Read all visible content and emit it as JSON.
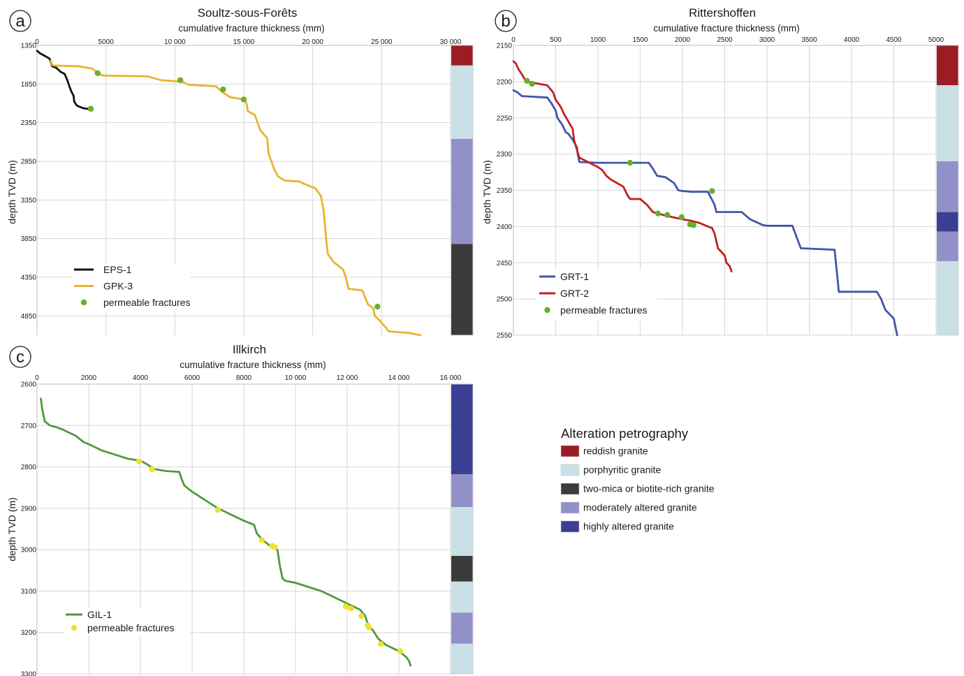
{
  "chart_data": [
    {
      "id": "a",
      "type": "line",
      "badge": "a",
      "title": "Soultz-sous-Forêts",
      "xlabel": "cumulative fracture thickness (mm)",
      "ylabel": "depth TVD (m)",
      "xlim": [
        0,
        30000
      ],
      "ylim": [
        1350,
        5100
      ],
      "y_inverted": true,
      "xticks": [
        0,
        5000,
        10000,
        15000,
        20000,
        25000,
        30000
      ],
      "xtick_labels": [
        "0",
        "5000",
        "10 000",
        "15 000",
        "20 000",
        "25 000",
        "30 000"
      ],
      "yticks": [
        1350,
        1850,
        2350,
        2850,
        3350,
        3850,
        4350,
        4850
      ],
      "ytick_labels": [
        "1350",
        "1850",
        "2350",
        "2850",
        "3350",
        "3850",
        "4350",
        "4850"
      ],
      "grid": true,
      "legend_position": "bottom-left",
      "series": [
        {
          "name": "EPS-1",
          "color": "#111111",
          "x": [
            0,
            200,
            500,
            900,
            1000,
            1100,
            1400,
            1700,
            2000,
            2200,
            2350,
            2500,
            2650,
            2700,
            2900,
            3300,
            3600,
            3900,
            4000
          ],
          "y": [
            1420,
            1450,
            1480,
            1520,
            1560,
            1620,
            1640,
            1690,
            1720,
            1800,
            1880,
            1950,
            2000,
            2080,
            2130,
            2160,
            2170,
            2170,
            2190
          ]
        },
        {
          "name": "GPK-3",
          "color": "#E8B430",
          "x": [
            1000,
            1100,
            1200,
            3000,
            4000,
            4300,
            4500,
            4800,
            8000,
            9000,
            10500,
            11000,
            13000,
            13400,
            14000,
            15000,
            15200,
            15300,
            15800,
            16000,
            16200,
            16700,
            16800,
            17000,
            17200,
            17500,
            18000,
            19000,
            19500,
            20200,
            20600,
            20800,
            20900,
            21000,
            21100,
            21500,
            22200,
            22400,
            22600,
            23600,
            24000,
            24400,
            24500,
            24800,
            25300,
            25500,
            27000,
            27800
          ],
          "y": [
            1550,
            1600,
            1610,
            1620,
            1650,
            1690,
            1720,
            1740,
            1750,
            1800,
            1820,
            1860,
            1880,
            1950,
            2020,
            2050,
            2100,
            2200,
            2250,
            2350,
            2450,
            2550,
            2750,
            2850,
            2950,
            3050,
            3100,
            3110,
            3150,
            3200,
            3300,
            3500,
            3700,
            3900,
            4050,
            4150,
            4250,
            4350,
            4500,
            4520,
            4700,
            4750,
            4850,
            4900,
            5000,
            5050,
            5070,
            5100
          ]
        }
      ],
      "permeable_fractures": [
        {
          "series": "EPS-1",
          "color": "#6AAE2E",
          "x": [
            3900
          ],
          "y": [
            2170
          ]
        },
        {
          "series": "GPK-3",
          "color": "#6AAE2E",
          "x": [
            4400,
            10400,
            13500,
            15000,
            24700
          ],
          "y": [
            1710,
            1800,
            1920,
            2050,
            4730
          ]
        }
      ],
      "legend": [
        {
          "label": "EPS-1",
          "kind": "line",
          "color": "#111111"
        },
        {
          "label": "GPK-3",
          "kind": "line",
          "color": "#E8B430"
        },
        {
          "label": "permeable fractures",
          "kind": "dot",
          "color": "#6AAE2E"
        }
      ],
      "alteration_column": [
        {
          "class": "reddish granite",
          "color": "#9B1C24",
          "from": 1350,
          "to": 1610
        },
        {
          "class": "porphyritic granite",
          "color": "#C8E0E6",
          "from": 1610,
          "to": 2560
        },
        {
          "class": "moderately altered granite",
          "color": "#9290C8",
          "from": 2560,
          "to": 3920
        },
        {
          "class": "two-mica or biotite-rich granite",
          "color": "#3B3B3B",
          "from": 3920,
          "to": 5100
        }
      ]
    },
    {
      "id": "b",
      "type": "line",
      "badge": "b",
      "title": "Rittershoffen",
      "xlabel": "cumulative fracture thickness (mm)",
      "ylabel": "depth TVD (m)",
      "xlim": [
        0,
        5000
      ],
      "ylim": [
        2150,
        2550
      ],
      "y_inverted": true,
      "xticks": [
        0,
        500,
        1000,
        1500,
        2000,
        2500,
        3000,
        3500,
        4000,
        4500,
        5000
      ],
      "xtick_labels": [
        "0",
        "500",
        "1000",
        "1500",
        "2000",
        "2500",
        "3000",
        "3500",
        "4000",
        "4500",
        "5000"
      ],
      "yticks": [
        2150,
        2200,
        2250,
        2300,
        2350,
        2400,
        2450,
        2500,
        2550
      ],
      "ytick_labels": [
        "2150",
        "2200",
        "2250",
        "2300",
        "2350",
        "2400",
        "2450",
        "2500",
        "2550"
      ],
      "grid": true,
      "legend_position": "bottom-left",
      "series": [
        {
          "name": "GRT-1",
          "color": "#3F56A8",
          "x": [
            0,
            50,
            100,
            400,
            450,
            500,
            520,
            580,
            620,
            650,
            700,
            750,
            760,
            780,
            1000,
            1250,
            1600,
            1650,
            1700,
            1800,
            1900,
            1950,
            2000,
            2100,
            2300,
            2380,
            2400,
            2700,
            2800,
            2950,
            3000,
            3300,
            3400,
            3800,
            3850,
            4300,
            4350,
            4400,
            4500,
            4540
          ],
          "y": [
            2212,
            2215,
            2220,
            2222,
            2230,
            2240,
            2250,
            2260,
            2270,
            2272,
            2280,
            2290,
            2300,
            2311,
            2312,
            2312,
            2312,
            2320,
            2330,
            2332,
            2340,
            2350,
            2351,
            2352,
            2352,
            2370,
            2380,
            2380,
            2390,
            2398,
            2399,
            2399,
            2430,
            2432,
            2490,
            2490,
            2500,
            2515,
            2527,
            2550
          ]
        },
        {
          "name": "GRT-2",
          "color": "#C02020",
          "x": [
            0,
            30,
            60,
            100,
            130,
            160,
            250,
            400,
            470,
            500,
            560,
            600,
            650,
            700,
            720,
            780,
            900,
            1000,
            1050,
            1100,
            1150,
            1300,
            1350,
            1380,
            1500,
            1580,
            1650,
            1800,
            2000,
            2100,
            2200,
            2300,
            2350,
            2380,
            2420,
            2500,
            2520,
            2560,
            2580
          ],
          "y": [
            2172,
            2175,
            2183,
            2190,
            2196,
            2200,
            2202,
            2205,
            2215,
            2225,
            2235,
            2245,
            2255,
            2265,
            2282,
            2305,
            2312,
            2318,
            2322,
            2330,
            2335,
            2345,
            2357,
            2362,
            2362,
            2370,
            2380,
            2385,
            2390,
            2392,
            2395,
            2400,
            2402,
            2410,
            2430,
            2440,
            2450,
            2455,
            2462
          ]
        }
      ],
      "permeable_fractures": [
        {
          "series": "GRT-1",
          "color": "#6AAE2E",
          "x": [
            1380,
            2350
          ],
          "y": [
            2312,
            2351
          ]
        },
        {
          "series": "GRT-2",
          "color": "#6AAE2E",
          "x": [
            160,
            220,
            1710,
            1820,
            1990,
            2090,
            2130
          ],
          "y": [
            2199,
            2203,
            2382,
            2384,
            2387,
            2397,
            2398
          ]
        }
      ],
      "legend": [
        {
          "label": "GRT-1",
          "kind": "line",
          "color": "#3F56A8"
        },
        {
          "label": "GRT-2",
          "kind": "line",
          "color": "#C02020"
        },
        {
          "label": "permeable fractures",
          "kind": "dot",
          "color": "#6AAE2E"
        }
      ],
      "alteration_column": [
        {
          "class": "reddish granite",
          "color": "#9B1C24",
          "from": 2150,
          "to": 2205
        },
        {
          "class": "porphyritic granite",
          "color": "#C8E0E6",
          "from": 2205,
          "to": 2310
        },
        {
          "class": "moderately altered granite",
          "color": "#9290C8",
          "from": 2310,
          "to": 2380
        },
        {
          "class": "highly altered granite",
          "color": "#3A3F93",
          "from": 2380,
          "to": 2407
        },
        {
          "class": "moderately altered granite",
          "color": "#9290C8",
          "from": 2407,
          "to": 2448
        },
        {
          "class": "porphyritic granite",
          "color": "#C8E0E6",
          "from": 2448,
          "to": 2550
        }
      ]
    },
    {
      "id": "c",
      "type": "line",
      "badge": "c",
      "title": "Illkirch",
      "xlabel": "cumulative fracture thickness (mm)",
      "ylabel": "depth TVD (m)",
      "xlim": [
        0,
        16000
      ],
      "ylim": [
        2600,
        3300
      ],
      "y_inverted": true,
      "xticks": [
        0,
        2000,
        4000,
        6000,
        8000,
        10000,
        12000,
        14000,
        16000
      ],
      "xtick_labels": [
        "0",
        "2000",
        "4000",
        "6000",
        "8000",
        "10 000",
        "12 000",
        "14 000",
        "16 000"
      ],
      "yticks": [
        2600,
        2700,
        2800,
        2900,
        3000,
        3100,
        3200,
        3300
      ],
      "ytick_labels": [
        "2600",
        "2700",
        "2800",
        "2900",
        "3000",
        "3100",
        "3200",
        "3300"
      ],
      "grid": true,
      "legend_position": "bottom-left",
      "series": [
        {
          "name": "GIL-1",
          "color": "#4E9A3C",
          "x": [
            150,
            200,
            300,
            500,
            800,
            1000,
            1500,
            1800,
            2000,
            2500,
            3000,
            3500,
            4000,
            4300,
            4500,
            5000,
            5500,
            5600,
            5700,
            6000,
            6500,
            7000,
            7500,
            8000,
            8200,
            8400,
            8500,
            8700,
            9000,
            9300,
            9400,
            9500,
            9600,
            10000,
            10500,
            11000,
            11500,
            12000,
            12500,
            12700,
            12800,
            13000,
            13200,
            13500,
            14000,
            14300,
            14400,
            14450
          ],
          "y": [
            2635,
            2660,
            2690,
            2700,
            2705,
            2710,
            2725,
            2740,
            2745,
            2760,
            2770,
            2780,
            2785,
            2795,
            2805,
            2810,
            2812,
            2830,
            2845,
            2860,
            2880,
            2900,
            2915,
            2930,
            2935,
            2940,
            2960,
            2975,
            2990,
            3000,
            3040,
            3070,
            3075,
            3080,
            3090,
            3100,
            3115,
            3130,
            3145,
            3160,
            3180,
            3195,
            3215,
            3230,
            3245,
            3260,
            3270,
            3280
          ]
        }
      ],
      "permeable_fractures": [
        {
          "series": "GIL-1",
          "color": "#F0E030",
          "x": [
            3950,
            4450,
            7000,
            8700,
            9100,
            9200,
            11950,
            12150,
            12550,
            12800,
            12850,
            13300,
            14050
          ],
          "y": [
            2787,
            2806,
            2904,
            2977,
            2991,
            2994,
            3137,
            3142,
            3160,
            3183,
            3188,
            3228,
            3245
          ]
        }
      ],
      "legend": [
        {
          "label": "GIL-1",
          "kind": "line",
          "color": "#4E9A3C"
        },
        {
          "label": "permeable fractures",
          "kind": "dot",
          "color": "#F0E030"
        }
      ],
      "alteration_column": [
        {
          "class": "highly altered granite",
          "color": "#3A3F93",
          "from": 2600,
          "to": 2818
        },
        {
          "class": "moderately altered granite",
          "color": "#9290C8",
          "from": 2818,
          "to": 2897
        },
        {
          "class": "porphyritic granite",
          "color": "#C8E0E6",
          "from": 2897,
          "to": 3015
        },
        {
          "class": "two-mica or biotite-rich granite",
          "color": "#3B3B3B",
          "from": 3015,
          "to": 3077
        },
        {
          "class": "porphyritic granite",
          "color": "#C8E0E6",
          "from": 3077,
          "to": 3152
        },
        {
          "class": "moderately altered granite",
          "color": "#9290C8",
          "from": 3152,
          "to": 3227
        },
        {
          "class": "porphyritic granite",
          "color": "#C8E0E6",
          "from": 3227,
          "to": 3300
        }
      ]
    }
  ],
  "alteration_legend": {
    "title": "Alteration petrography",
    "items": [
      {
        "label": "reddish granite",
        "color": "#9B1C24"
      },
      {
        "label": "porphyritic granite",
        "color": "#C8E0E6"
      },
      {
        "label": "two-mica or biotite-rich granite",
        "color": "#3B3B3B"
      },
      {
        "label": "moderately altered granite",
        "color": "#9290C8"
      },
      {
        "label": "highly altered granite",
        "color": "#3A3F93"
      }
    ]
  }
}
